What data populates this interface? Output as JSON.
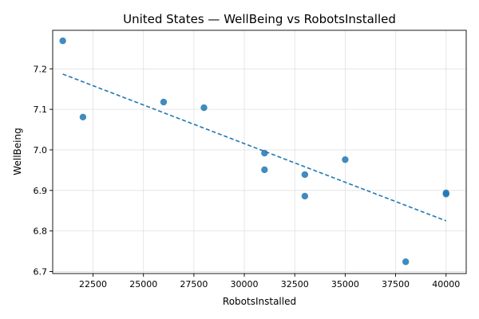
{
  "chart_data": {
    "type": "scatter",
    "title": "United States — WellBeing vs RobotsInstalled",
    "xlabel": "RobotsInstalled",
    "ylabel": "WellBeing",
    "xlim": [
      20500,
      41000
    ],
    "ylim": [
      6.695,
      7.295
    ],
    "grid": true,
    "x_ticks": [
      22500,
      25000,
      27500,
      30000,
      32500,
      35000,
      37500,
      40000
    ],
    "y_ticks": [
      6.7,
      6.8,
      6.9,
      7.0,
      7.1,
      7.2
    ],
    "points": [
      {
        "x": 21000,
        "y": 7.269
      },
      {
        "x": 22000,
        "y": 7.081
      },
      {
        "x": 26000,
        "y": 7.118
      },
      {
        "x": 28000,
        "y": 7.104
      },
      {
        "x": 31000,
        "y": 6.992
      },
      {
        "x": 31000,
        "y": 6.951
      },
      {
        "x": 33000,
        "y": 6.939
      },
      {
        "x": 33000,
        "y": 6.886
      },
      {
        "x": 35000,
        "y": 6.976
      },
      {
        "x": 38000,
        "y": 6.724
      },
      {
        "x": 40000,
        "y": 6.894
      },
      {
        "x": 40000,
        "y": 6.891
      }
    ],
    "trendline": {
      "x": [
        21000,
        40000
      ],
      "y": [
        7.187,
        6.825
      ]
    },
    "colors": {
      "points": "#1f77b4",
      "trendline": "#1f77b4"
    }
  }
}
